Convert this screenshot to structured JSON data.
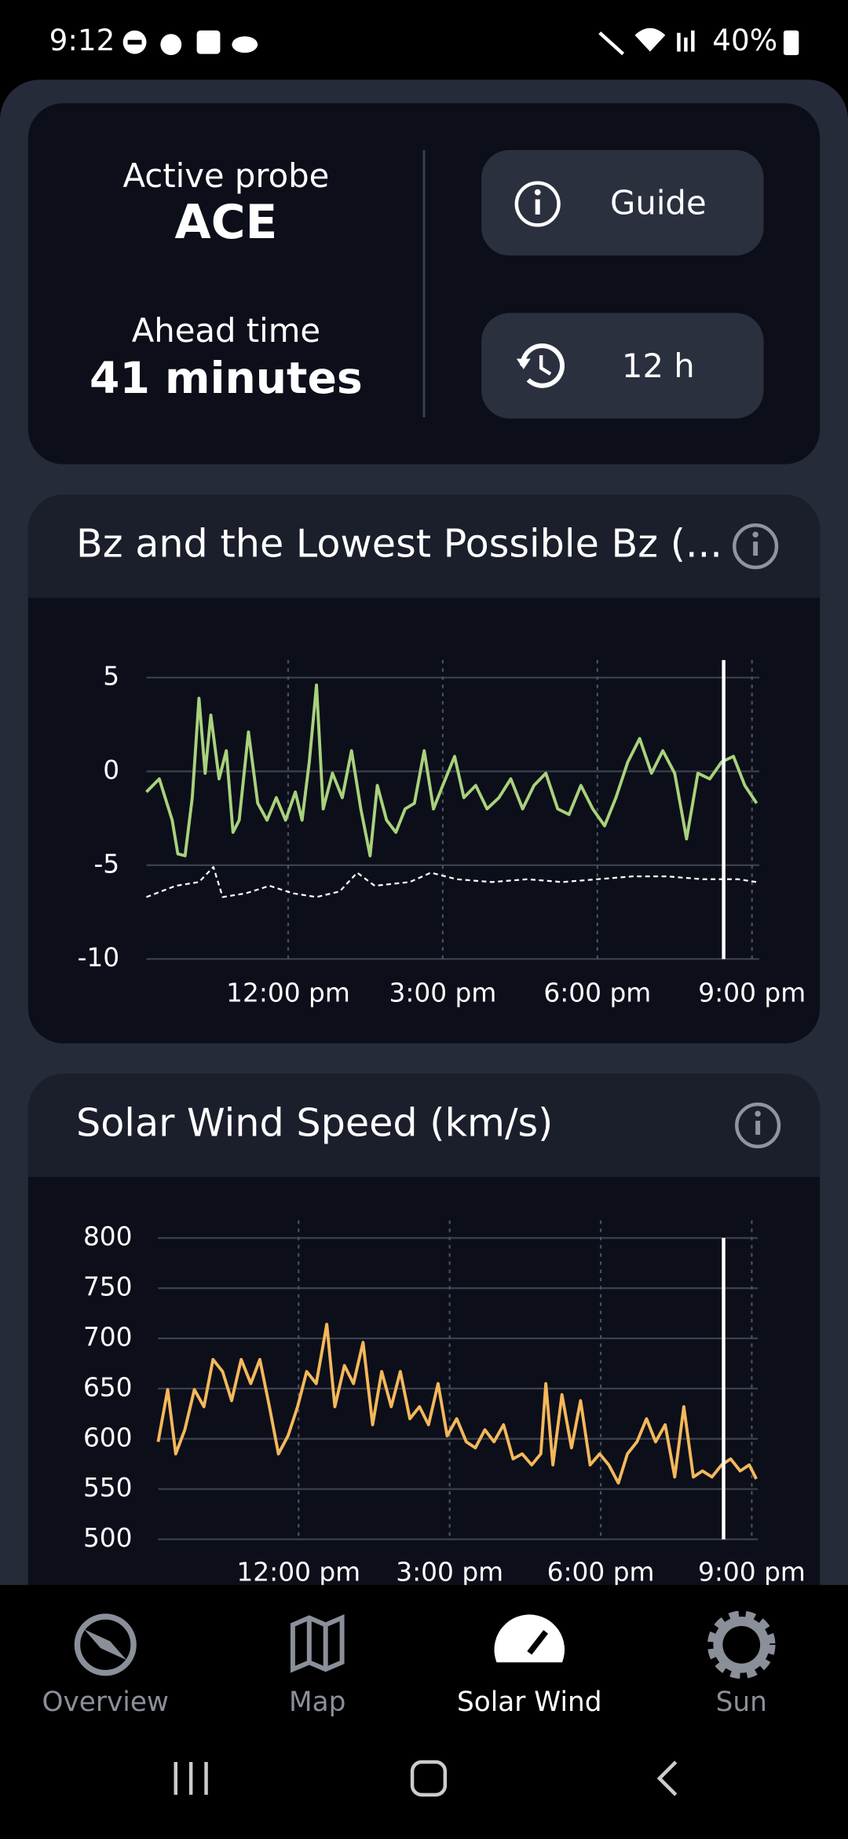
{
  "status_bar": {
    "time": "9:12",
    "battery": "40%"
  },
  "summary": {
    "probe_label": "Active probe",
    "probe": "ACE",
    "ahead_label": "Ahead time",
    "ahead": "41 minutes",
    "guide_button": "Guide",
    "range_button": "12 h"
  },
  "chart_data": [
    {
      "type": "line",
      "title": "Bz and the Lowest Possible Bz (...",
      "xlim": [
        9.25,
        21.14
      ],
      "xticks": [
        {
          "value": 12,
          "label": "12:00 pm"
        },
        {
          "value": 15,
          "label": "3:00 pm"
        },
        {
          "value": 18,
          "label": "6:00 pm"
        },
        {
          "value": 21,
          "label": "9:00 pm"
        }
      ],
      "ylim": [
        -10,
        5
      ],
      "yticks": [
        -10,
        -5,
        0,
        5
      ],
      "grid": true,
      "vline_x": 20.45,
      "series": [
        {
          "color": "#a9d27c",
          "dashed": false,
          "x": [
            9.25,
            9.5,
            9.75,
            9.86,
            10.0,
            10.14,
            10.27,
            10.39,
            10.5,
            10.66,
            10.8,
            10.93,
            11.05,
            11.23,
            11.41,
            11.59,
            11.77,
            11.95,
            12.14,
            12.27,
            12.41,
            12.55,
            12.68,
            12.86,
            13.05,
            13.23,
            13.41,
            13.59,
            13.73,
            13.91,
            14.09,
            14.27,
            14.45,
            14.64,
            14.82,
            15.0,
            15.23,
            15.41,
            15.64,
            15.86,
            16.09,
            16.32,
            16.55,
            16.77,
            17.0,
            17.23,
            17.45,
            17.68,
            17.91,
            18.14,
            18.36,
            18.59,
            18.82,
            19.05,
            19.27,
            19.5,
            19.73,
            19.95,
            20.18,
            20.41,
            20.64,
            20.86,
            21.09
          ],
          "values": [
            -1.1,
            -0.4,
            -2.6,
            -4.4,
            -4.5,
            -1.4,
            3.9,
            -0.1,
            3.0,
            -0.4,
            1.1,
            -3.25,
            -2.6,
            2.1,
            -1.7,
            -2.6,
            -1.4,
            -2.6,
            -1.1,
            -2.6,
            0.5,
            4.6,
            -2.0,
            -0.1,
            -1.4,
            1.1,
            -2.0,
            -4.5,
            -0.75,
            -2.6,
            -3.25,
            -2.0,
            -1.7,
            1.1,
            -2.0,
            -0.75,
            0.8,
            -1.4,
            -0.75,
            -2.0,
            -1.4,
            -0.4,
            -2.0,
            -0.75,
            -0.1,
            -2.0,
            -2.3,
            -0.75,
            -2.0,
            -2.9,
            -1.4,
            0.5,
            1.75,
            -0.1,
            1.1,
            -0.1,
            -3.6,
            -0.1,
            -0.4,
            0.5,
            0.8,
            -0.75,
            -1.7
          ]
        },
        {
          "color": "#ffffff",
          "dashed": true,
          "x": [
            9.25,
            9.82,
            10.27,
            10.55,
            10.73,
            11.18,
            11.64,
            12.09,
            12.55,
            13.0,
            13.34,
            13.68,
            14.36,
            14.77,
            15.27,
            15.95,
            16.64,
            17.32,
            18.0,
            18.68,
            19.36,
            20.05,
            20.73,
            21.09
          ],
          "values": [
            -6.7,
            -6.1,
            -5.9,
            -5.1,
            -6.7,
            -6.5,
            -6.1,
            -6.5,
            -6.7,
            -6.4,
            -5.4,
            -6.1,
            -5.9,
            -5.4,
            -5.75,
            -5.9,
            -5.75,
            -5.9,
            -5.75,
            -5.6,
            -5.6,
            -5.75,
            -5.75,
            -5.9
          ]
        }
      ]
    },
    {
      "type": "line",
      "title": "Solar Wind Speed (km/s)",
      "xlim": [
        9.21,
        21.12
      ],
      "xticks": [
        {
          "value": 12,
          "label": "12:00 pm"
        },
        {
          "value": 15,
          "label": "3:00 pm"
        },
        {
          "value": 18,
          "label": "6:00 pm"
        },
        {
          "value": 21,
          "label": "9:00 pm"
        }
      ],
      "ylim": [
        500,
        800
      ],
      "yticks": [
        500,
        550,
        600,
        650,
        700,
        750,
        800
      ],
      "grid": true,
      "vline_x": 20.44,
      "series": [
        {
          "color": "#f5b85a",
          "dashed": false,
          "x": [
            9.21,
            9.4,
            9.56,
            9.74,
            9.93,
            10.12,
            10.3,
            10.49,
            10.67,
            10.86,
            11.05,
            11.23,
            11.42,
            11.6,
            11.79,
            11.98,
            12.16,
            12.35,
            12.56,
            12.72,
            12.91,
            13.09,
            13.28,
            13.47,
            13.65,
            13.84,
            14.02,
            14.21,
            14.4,
            14.58,
            14.77,
            14.95,
            15.14,
            15.33,
            15.51,
            15.7,
            15.88,
            16.07,
            16.26,
            16.44,
            16.63,
            16.81,
            16.91,
            17.05,
            17.23,
            17.42,
            17.6,
            17.79,
            17.98,
            18.16,
            18.35,
            18.53,
            18.72,
            18.91,
            19.09,
            19.28,
            19.47,
            19.65,
            19.84,
            20.02,
            20.21,
            20.4,
            20.58,
            20.77,
            20.95,
            21.09
          ],
          "values": [
            597,
            649,
            585,
            609,
            649,
            632,
            679,
            667,
            638,
            679,
            655,
            679,
            632,
            585,
            603,
            632,
            667,
            655,
            714,
            632,
            673,
            655,
            696,
            614,
            667,
            632,
            667,
            620,
            632,
            614,
            655,
            603,
            620,
            597,
            591,
            609,
            597,
            614,
            580,
            585,
            574,
            585,
            655,
            574,
            644,
            591,
            638,
            574,
            585,
            574,
            556,
            585,
            597,
            620,
            597,
            614,
            562,
            632,
            562,
            568,
            562,
            574,
            580,
            568,
            574,
            560
          ]
        }
      ]
    }
  ],
  "nav": [
    "Overview",
    "Map",
    "Solar Wind",
    "Sun"
  ]
}
